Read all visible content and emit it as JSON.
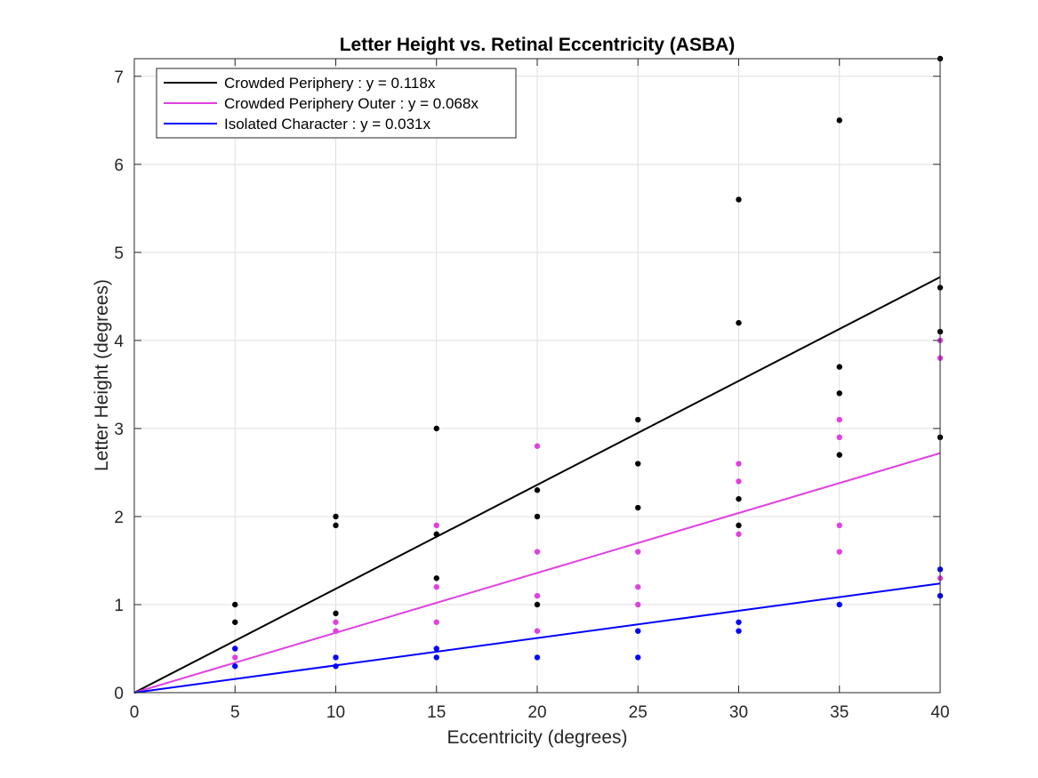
{
  "chart_data": {
    "type": "scatter",
    "title": "Letter Height vs. Retinal Eccentricity (ASBA)",
    "xlabel": "Eccentricity (degrees)",
    "ylabel": "Letter Height (degrees)",
    "xlim": [
      0,
      40
    ],
    "ylim": [
      0,
      7.2
    ],
    "xticks": [
      0,
      5,
      10,
      15,
      20,
      25,
      30,
      35,
      40
    ],
    "yticks": [
      0,
      1,
      2,
      3,
      4,
      5,
      6,
      7
    ],
    "grid": true,
    "legend_position": "top-left",
    "series": [
      {
        "name": "Crowded Periphery : y = 0.118x",
        "color": "#000000",
        "slope": 0.118,
        "points": [
          [
            5,
            0.8
          ],
          [
            5,
            1.0
          ],
          [
            10,
            0.9
          ],
          [
            10,
            1.9
          ],
          [
            10,
            2.0
          ],
          [
            15,
            1.3
          ],
          [
            15,
            1.8
          ],
          [
            15,
            3.0
          ],
          [
            20,
            1.0
          ],
          [
            20,
            2.0
          ],
          [
            20,
            2.3
          ],
          [
            25,
            2.1
          ],
          [
            25,
            2.6
          ],
          [
            25,
            3.1
          ],
          [
            30,
            1.9
          ],
          [
            30,
            2.2
          ],
          [
            30,
            4.2
          ],
          [
            30,
            5.6
          ],
          [
            35,
            2.7
          ],
          [
            35,
            3.4
          ],
          [
            35,
            3.7
          ],
          [
            35,
            6.5
          ],
          [
            40,
            2.9
          ],
          [
            40,
            4.1
          ],
          [
            40,
            4.6
          ],
          [
            40,
            7.2
          ]
        ]
      },
      {
        "name": "Crowded Periphery Outer : y = 0.068x",
        "color": "#e040e0",
        "slope": 0.068,
        "points": [
          [
            5,
            0.4
          ],
          [
            5,
            0.5
          ],
          [
            10,
            0.7
          ],
          [
            10,
            0.8
          ],
          [
            15,
            0.8
          ],
          [
            15,
            1.2
          ],
          [
            15,
            1.9
          ],
          [
            20,
            0.7
          ],
          [
            20,
            1.1
          ],
          [
            20,
            1.6
          ],
          [
            20,
            2.8
          ],
          [
            25,
            1.0
          ],
          [
            25,
            1.2
          ],
          [
            25,
            1.6
          ],
          [
            30,
            1.8
          ],
          [
            30,
            2.4
          ],
          [
            30,
            2.6
          ],
          [
            35,
            1.6
          ],
          [
            35,
            1.9
          ],
          [
            35,
            2.9
          ],
          [
            35,
            3.1
          ],
          [
            40,
            1.3
          ],
          [
            40,
            3.8
          ],
          [
            40,
            4.0
          ]
        ]
      },
      {
        "name": "Isolated Character : y = 0.031x",
        "color": "#0000ff",
        "slope": 0.031,
        "points": [
          [
            5,
            0.3
          ],
          [
            5,
            0.5
          ],
          [
            10,
            0.3
          ],
          [
            10,
            0.4
          ],
          [
            15,
            0.4
          ],
          [
            15,
            0.5
          ],
          [
            20,
            0.4
          ],
          [
            25,
            0.4
          ],
          [
            25,
            0.7
          ],
          [
            30,
            0.7
          ],
          [
            30,
            0.8
          ],
          [
            35,
            1.0
          ],
          [
            40,
            1.1
          ],
          [
            40,
            1.4
          ]
        ]
      }
    ]
  }
}
